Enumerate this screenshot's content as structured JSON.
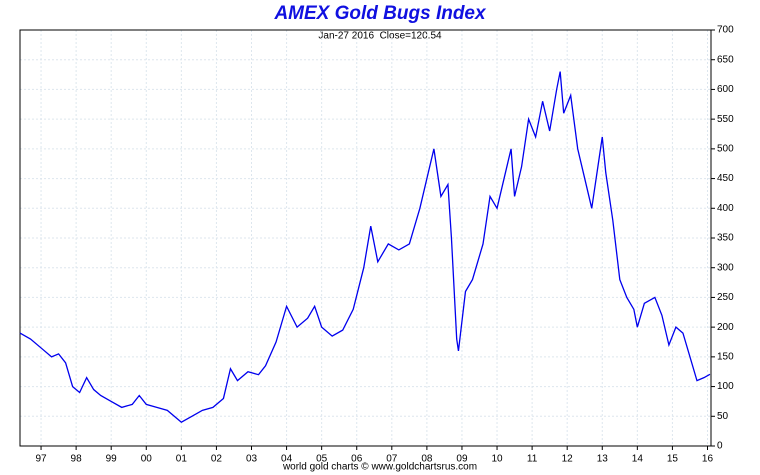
{
  "chart_data": {
    "type": "line",
    "title": "AMEX Gold Bugs Index",
    "subtitle": "Jan-27 2016  Close=120.54",
    "footer": "world gold charts © www.goldchartsrus.com",
    "x": [
      1996.4,
      1996.7,
      1997.0,
      1997.3,
      1997.5,
      1997.7,
      1997.9,
      1998.1,
      1998.3,
      1998.5,
      1998.7,
      1999.0,
      1999.3,
      1999.6,
      1999.8,
      2000.0,
      2000.3,
      2000.6,
      2000.9,
      2001.0,
      2001.3,
      2001.6,
      2001.9,
      2002.2,
      2002.4,
      2002.6,
      2002.9,
      2003.2,
      2003.4,
      2003.7,
      2004.0,
      2004.3,
      2004.6,
      2004.8,
      2005.0,
      2005.3,
      2005.6,
      2005.9,
      2006.2,
      2006.4,
      2006.6,
      2006.9,
      2007.2,
      2007.5,
      2007.8,
      2008.0,
      2008.2,
      2008.4,
      2008.6,
      2008.7,
      2008.85,
      2008.9,
      2009.1,
      2009.3,
      2009.6,
      2009.8,
      2010.0,
      2010.2,
      2010.4,
      2010.5,
      2010.7,
      2010.9,
      2011.1,
      2011.3,
      2011.5,
      2011.7,
      2011.8,
      2011.9,
      2012.1,
      2012.3,
      2012.5,
      2012.7,
      2012.9,
      2013.0,
      2013.1,
      2013.3,
      2013.5,
      2013.7,
      2013.9,
      2014.0,
      2014.2,
      2014.5,
      2014.7,
      2014.9,
      2015.1,
      2015.3,
      2015.5,
      2015.7,
      2015.9,
      2016.07
    ],
    "series": [
      {
        "name": "AMEX Gold Bugs Index",
        "color": "#0000ee",
        "values": [
          190,
          180,
          165,
          150,
          155,
          140,
          100,
          90,
          115,
          95,
          85,
          75,
          65,
          70,
          85,
          70,
          65,
          60,
          45,
          40,
          50,
          60,
          65,
          80,
          130,
          110,
          125,
          120,
          135,
          175,
          235,
          200,
          215,
          235,
          200,
          185,
          195,
          230,
          300,
          370,
          310,
          340,
          330,
          340,
          400,
          450,
          500,
          420,
          440,
          350,
          180,
          160,
          260,
          280,
          340,
          420,
          400,
          450,
          500,
          420,
          470,
          550,
          520,
          580,
          530,
          600,
          630,
          560,
          590,
          500,
          450,
          400,
          480,
          520,
          460,
          380,
          280,
          250,
          230,
          200,
          240,
          250,
          220,
          170,
          200,
          190,
          150,
          110,
          115,
          120.54
        ]
      }
    ],
    "xlim": [
      1996.4,
      2016.1
    ],
    "xticks": [
      {
        "value": 1997,
        "label": "97"
      },
      {
        "value": 1998,
        "label": "98"
      },
      {
        "value": 1999,
        "label": "99"
      },
      {
        "value": 2000,
        "label": "00"
      },
      {
        "value": 2001,
        "label": "01"
      },
      {
        "value": 2002,
        "label": "02"
      },
      {
        "value": 2003,
        "label": "03"
      },
      {
        "value": 2004,
        "label": "04"
      },
      {
        "value": 2005,
        "label": "05"
      },
      {
        "value": 2006,
        "label": "06"
      },
      {
        "value": 2007,
        "label": "07"
      },
      {
        "value": 2008,
        "label": "08"
      },
      {
        "value": 2009,
        "label": "09"
      },
      {
        "value": 2010,
        "label": "10"
      },
      {
        "value": 2011,
        "label": "11"
      },
      {
        "value": 2012,
        "label": "12"
      },
      {
        "value": 2013,
        "label": "13"
      },
      {
        "value": 2014,
        "label": "14"
      },
      {
        "value": 2015,
        "label": "15"
      },
      {
        "value": 2016,
        "label": "16"
      }
    ],
    "ylim": [
      0,
      700
    ],
    "yticks": [
      0,
      50,
      100,
      150,
      200,
      250,
      300,
      350,
      400,
      450,
      500,
      550,
      600,
      650,
      700
    ],
    "grid": true
  }
}
